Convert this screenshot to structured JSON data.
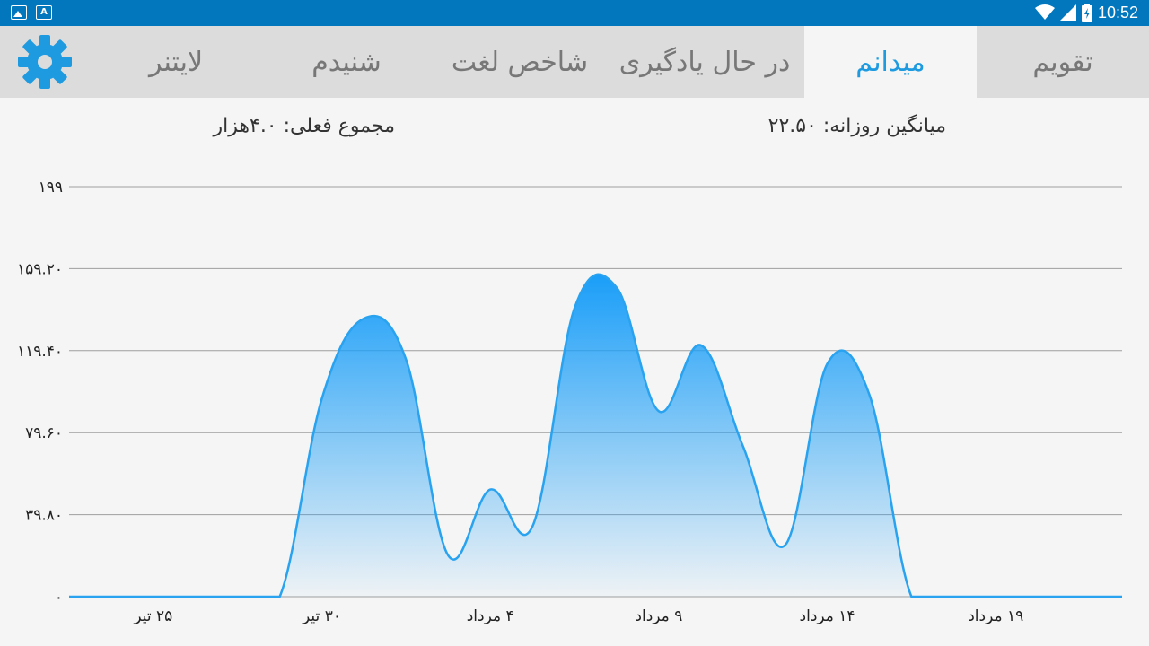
{
  "status_bar": {
    "time": "10:52",
    "left_icons": [
      "image-icon",
      "app-a-icon"
    ],
    "right_icons": [
      "wifi-icon",
      "signal-icon",
      "battery-icon"
    ]
  },
  "tabs": [
    {
      "label": "تقویم",
      "active": false
    },
    {
      "label": "میدانم",
      "active": true
    },
    {
      "label": "در حال یادگیری",
      "active": false
    },
    {
      "label": "شاخص لغت",
      "active": false
    },
    {
      "label": "شنیدم",
      "active": false
    },
    {
      "label": "لایتنر",
      "active": false
    }
  ],
  "stats": {
    "daily_average": "میانگین روزانه: ۲۲.۵۰",
    "current_total": "مجموع فعلی: ۴.۰هزار"
  },
  "colors": {
    "accent": "#1e9be0",
    "line": "#29a3ef",
    "status_bar": "#0277bd"
  },
  "chart_data": {
    "type": "area",
    "xlabel": "",
    "ylabel": "",
    "ylim": [
      0,
      199
    ],
    "yticks": [
      0,
      39.8,
      79.6,
      119.4,
      159.2,
      199
    ],
    "ytick_labels": [
      "۰",
      "۳۹.۸۰",
      "۷۹.۶۰",
      "۱۱۹.۴۰",
      "۱۵۹.۲۰",
      "۱۹۹"
    ],
    "xlim": [
      -1,
      24
    ],
    "xticks": [
      1,
      5,
      9,
      13,
      17,
      21
    ],
    "xtick_labels": [
      "۲۵ تیر",
      "۳۰ تیر",
      "۴ مرداد",
      "۹ مرداد",
      "۱۴ مرداد",
      "۱۹ مرداد"
    ],
    "grid": true,
    "legend": "none",
    "series": [
      {
        "x": [
          -1,
          0,
          1,
          2,
          3,
          4,
          5,
          6,
          7,
          8,
          9,
          10,
          11,
          12,
          13,
          14,
          15,
          16,
          17,
          18,
          19,
          20,
          21,
          22,
          23,
          24
        ],
        "values": [
          0,
          0,
          0,
          0,
          0,
          0,
          96,
          135,
          115,
          20,
          52,
          34,
          140,
          150,
          90,
          122,
          73,
          25,
          113,
          98,
          0,
          0,
          0,
          0,
          0,
          0
        ]
      }
    ]
  }
}
